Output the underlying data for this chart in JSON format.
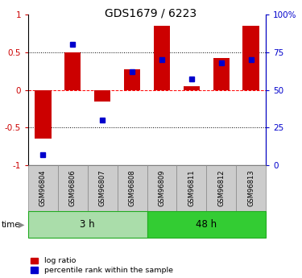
{
  "title": "GDS1679 / 6223",
  "samples": [
    "GSM96804",
    "GSM96806",
    "GSM96807",
    "GSM96808",
    "GSM96809",
    "GSM96811",
    "GSM96812",
    "GSM96813"
  ],
  "log_ratio": [
    -0.65,
    0.5,
    -0.15,
    0.27,
    0.85,
    0.05,
    0.42,
    0.85
  ],
  "percentile_rank": [
    7,
    80,
    30,
    62,
    70,
    57,
    68,
    70
  ],
  "groups": [
    {
      "label": "3 h",
      "indices": [
        0,
        1,
        2,
        3
      ],
      "color": "#aaddaa"
    },
    {
      "label": "48 h",
      "indices": [
        4,
        5,
        6,
        7
      ],
      "color": "#33cc33"
    }
  ],
  "bar_color": "#cc0000",
  "pct_color": "#0000cc",
  "ylim_left": [
    -1,
    1
  ],
  "ylim_right": [
    0,
    100
  ],
  "yticks_left": [
    -1,
    -0.5,
    0,
    0.5,
    1
  ],
  "ytick_labels_left": [
    "-1",
    "-0.5",
    "0",
    "0.5",
    "1"
  ],
  "yticks_right": [
    0,
    25,
    50,
    75,
    100
  ],
  "ytick_labels_right": [
    "0",
    "25",
    "50",
    "75",
    "100%"
  ],
  "hlines": [
    -0.5,
    0,
    0.5
  ],
  "hline_colors": [
    "black",
    "red",
    "black"
  ],
  "hline_styles": [
    "dotted",
    "dashed",
    "dotted"
  ],
  "bar_width": 0.55,
  "pct_marker_size": 5,
  "legend_items": [
    {
      "label": "log ratio",
      "color": "#cc0000"
    },
    {
      "label": "percentile rank within the sample",
      "color": "#0000cc"
    }
  ],
  "time_label": "time",
  "background_color": "#ffffff"
}
